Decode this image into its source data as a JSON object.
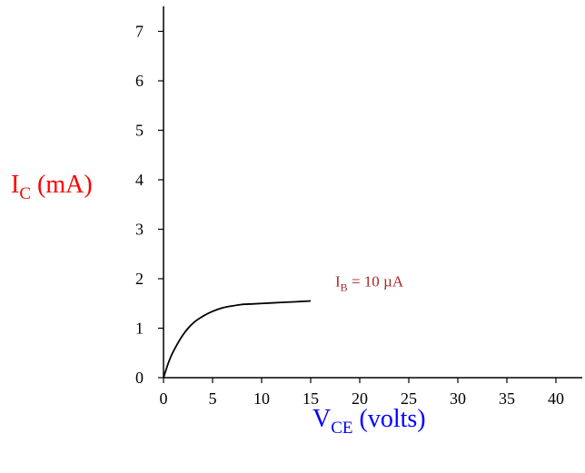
{
  "chart_data": {
    "type": "line",
    "xlabel": {
      "main": "V",
      "sub": "CE",
      "rest": " (volts)"
    },
    "ylabel": {
      "main": "I",
      "sub": "C",
      "rest": " (mA)"
    },
    "xlim": [
      0,
      42
    ],
    "ylim": [
      0,
      7.4
    ],
    "x_ticks": [
      0,
      5,
      10,
      15,
      20,
      25,
      30,
      35,
      40
    ],
    "y_ticks": [
      0,
      1,
      2,
      3,
      4,
      5,
      6,
      7
    ],
    "highlight_x_tick": 15,
    "grid": false,
    "series": [
      {
        "x": [
          0,
          0.5,
          1,
          2,
          3,
          4,
          5,
          6,
          7,
          8,
          9,
          10,
          11,
          12,
          13,
          14,
          15
        ],
        "y": [
          0,
          0.3,
          0.53,
          0.87,
          1.1,
          1.24,
          1.34,
          1.41,
          1.45,
          1.48,
          1.49,
          1.5,
          1.51,
          1.52,
          1.53,
          1.54,
          1.55
        ]
      }
    ],
    "annotation": {
      "main": "I",
      "sub": "B",
      "rest": " = 10 µA",
      "x": 17.5,
      "y": 1.95
    }
  },
  "colors": {
    "axes": "#000000",
    "curve": "#000000",
    "xlabel": "#0000ff",
    "ylabel": "#ff0000",
    "highlight_tick": "#0000ff",
    "annotation": "#a52a2a"
  }
}
